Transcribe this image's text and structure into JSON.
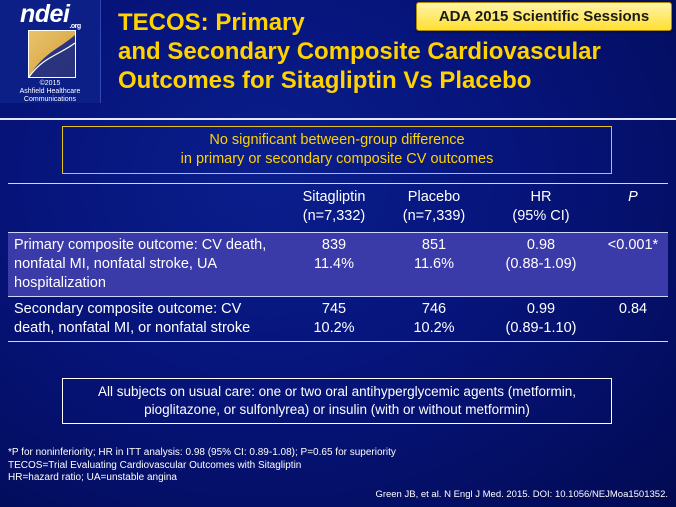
{
  "logo": {
    "name": "ndei",
    "suffix": ".org",
    "copyright_line1": "©2015",
    "copyright_line2": "Ashfield Healthcare",
    "copyright_line3": "Communications"
  },
  "badge": "ADA 2015 Scientific Sessions",
  "title": {
    "line1": "TECOS: Primary",
    "line2": "and Secondary Composite Cardiovascular",
    "line3": "Outcomes for Sitagliptin Vs Placebo"
  },
  "notice": {
    "line1": "No significant between-group difference",
    "line2": "in primary or secondary composite CV outcomes"
  },
  "table": {
    "headers": [
      {
        "l1": "Sitagliptin",
        "l2": "(n=7,332)"
      },
      {
        "l1": "Placebo",
        "l2": "(n=7,339)"
      },
      {
        "l1": "HR",
        "l2": "(95% CI)"
      },
      {
        "l1": "P",
        "l2": ""
      }
    ],
    "rows": [
      {
        "outcome": "Primary composite outcome: CV death, nonfatal MI, nonfatal stroke, UA hospitalization",
        "sitagliptin": {
          "n": "839",
          "pct": "11.4%"
        },
        "placebo": {
          "n": "851",
          "pct": "11.6%"
        },
        "hr": {
          "v": "0.98",
          "ci": "(0.88-1.09)"
        },
        "p": "<0.001*"
      },
      {
        "outcome": "Secondary composite outcome: CV death, nonfatal MI, or nonfatal stroke",
        "sitagliptin": {
          "n": "745",
          "pct": "10.2%"
        },
        "placebo": {
          "n": "746",
          "pct": "10.2%"
        },
        "hr": {
          "v": "0.99",
          "ci": "(0.89-1.10)"
        },
        "p": "0.84"
      }
    ]
  },
  "subjects": {
    "line1": "All subjects on usual care: one or two oral antihyperglycemic agents (metformin,",
    "line2": "pioglitazone, or sulfonlyrea) or insulin (with or without metformin)"
  },
  "footnotes": {
    "line1": "*P for noninferiority; HR in ITT analysis: 0.98 (95% CI: 0.89-1.08); P=0.65 for superiority",
    "line2": "TECOS=Trial Evaluating Cardiovascular Outcomes with Sitagliptin",
    "line3": "HR=hazard ratio; UA=unstable angina"
  },
  "citation": "Green JB, et al. N Engl J Med. 2015. DOI: 10.1056/NEJMoa1501352."
}
